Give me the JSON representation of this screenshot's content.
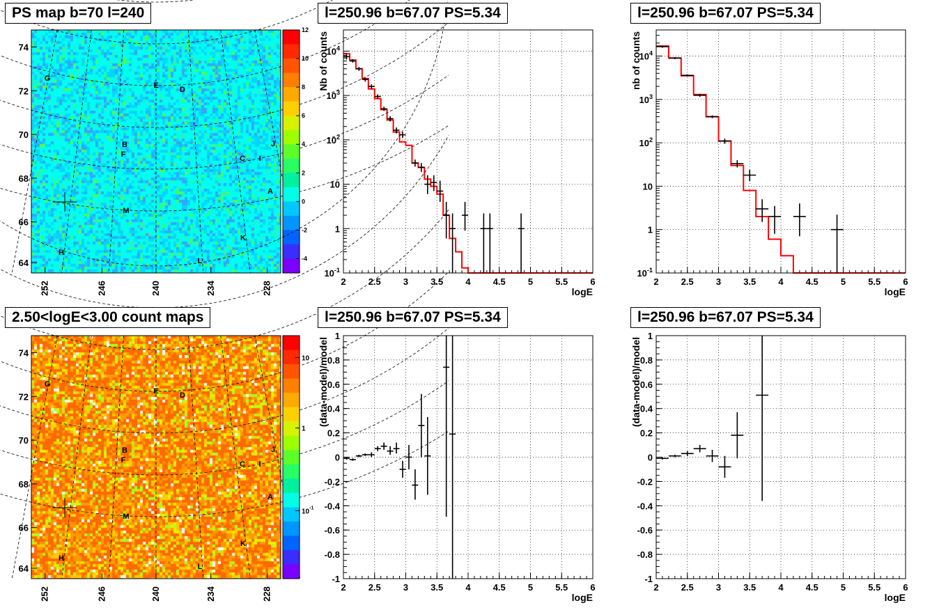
{
  "colors": {
    "model_line": "#ff0000",
    "data_points": "#000000",
    "frame": "#000000",
    "grid": "#000000"
  },
  "panels": {
    "ps_map": {
      "title": "PS map b=70 l=240"
    },
    "count_map": {
      "title": "2.50<logE<3.00 count maps"
    },
    "spec1": {
      "title": "l=250.96 b=67.07 PS=5.34"
    },
    "spec2": {
      "title": "l=250.96 b=67.07 PS=5.34"
    },
    "res1": {
      "title": "l=250.96 b=67.07 PS=5.34"
    },
    "res2": {
      "title": "l=250.96 b=67.07 PS=5.34"
    }
  },
  "chart_data": [
    {
      "id": "ps_map",
      "type": "heatmap",
      "title": "PS map b=70 l=240",
      "x_ticks": [
        "252",
        "246",
        "240",
        "234",
        "228"
      ],
      "y_ticks": [
        "74",
        "72",
        "70",
        "68",
        "66",
        "64"
      ],
      "colorbar": {
        "scale": "linear",
        "ticks": [
          "12",
          "10",
          "8",
          "6",
          "4",
          "2",
          "0",
          "-2",
          "-4"
        ],
        "range": [
          -5,
          12
        ]
      },
      "grid": true,
      "source_labels": [
        "G",
        "E",
        "D",
        "B",
        "F",
        "C",
        "I",
        "J",
        "A",
        "M",
        "K",
        "H",
        "L"
      ]
    },
    {
      "id": "count_map",
      "type": "heatmap",
      "title": "2.50<logE<3.00 count maps",
      "x_ticks": [
        "252",
        "246",
        "240",
        "234",
        "228"
      ],
      "y_ticks": [
        "74",
        "72",
        "70",
        "68",
        "66",
        "64"
      ],
      "colorbar": {
        "scale": "log",
        "ticks": [
          "10",
          "1",
          "10-1"
        ]
      },
      "grid": true,
      "source_labels": [
        "G",
        "E",
        "D",
        "B",
        "F",
        "C",
        "I",
        "J",
        "A",
        "M",
        "K",
        "H",
        "L"
      ]
    },
    {
      "id": "spec1",
      "type": "line",
      "title": "l=250.96 b=67.07 PS=5.34",
      "xlabel": "logE",
      "ylabel": "Nb of counts",
      "xlim": [
        2,
        6
      ],
      "ylim": [
        0.1,
        30000
      ],
      "y_scale": "log",
      "grid": true,
      "x_ticks": [
        "2",
        "2.5",
        "3",
        "3.5",
        "4",
        "4.5",
        "5",
        "5.5",
        "6"
      ],
      "y_ticks": [
        "10-1",
        "1",
        "10",
        "102",
        "103",
        "104"
      ],
      "series": [
        {
          "type": "step",
          "bin_width": 0.1,
          "edges": [
            2,
            2.1,
            2.2,
            2.3,
            2.4,
            2.5,
            2.6,
            2.7,
            2.8,
            2.9,
            3,
            3.1,
            3.2,
            3.3,
            3.4,
            3.5,
            3.6,
            3.7,
            3.8,
            3.9,
            4,
            4.1,
            4.2,
            4.3,
            4.4,
            4.5,
            4.6,
            4.7,
            4.8,
            4.9,
            5,
            5.1,
            5.2,
            5.3,
            5.4,
            5.5,
            5.6,
            5.7,
            5.8,
            5.9,
            6
          ],
          "values": [
            8700,
            6300,
            4000,
            2400,
            1400,
            850,
            480,
            280,
            150,
            90,
            75,
            30,
            24,
            13,
            9,
            6,
            2,
            0.6,
            0.3,
            0.13,
            0.1,
            0.1,
            0.1,
            0.1,
            0.1,
            0.1,
            0.1,
            0.1,
            0.1,
            0.1,
            0.1,
            0.1,
            0.1,
            0.1,
            0.1,
            0.1,
            0.1,
            0.1,
            0.1,
            0.1
          ]
        },
        {
          "type": "errorbar",
          "points": [
            [
              2.05,
              7500,
              6500,
              8500
            ],
            [
              2.15,
              6000,
              5500,
              6600
            ],
            [
              2.25,
              4000,
              3600,
              4400
            ],
            [
              2.35,
              2300,
              2050,
              2550
            ],
            [
              2.45,
              1600,
              1420,
              1780
            ],
            [
              2.55,
              950,
              850,
              1060
            ],
            [
              2.65,
              500,
              450,
              560
            ],
            [
              2.75,
              300,
              260,
              340
            ],
            [
              2.85,
              165,
              140,
              190
            ],
            [
              2.95,
              130,
              110,
              150
            ],
            [
              3.15,
              30,
              25,
              36
            ],
            [
              3.25,
              24,
              19,
              30
            ],
            [
              3.35,
              10,
              6,
              16
            ],
            [
              3.45,
              11,
              7,
              16
            ],
            [
              3.55,
              7,
              4,
              12
            ],
            [
              3.65,
              2,
              0.6,
              4
            ],
            [
              3.75,
              1,
              0.1,
              2.2
            ],
            [
              3.95,
              2,
              0.9,
              4
            ],
            [
              4.25,
              1,
              0.1,
              2.2
            ],
            [
              4.35,
              1,
              0.1,
              2.2
            ],
            [
              4.85,
              1,
              0.1,
              2.2
            ]
          ]
        }
      ]
    },
    {
      "id": "spec2",
      "type": "line",
      "title": "l=250.96 b=67.07 PS=5.34",
      "xlabel": "logE",
      "ylabel": "nb of counts",
      "xlim": [
        2,
        6
      ],
      "ylim": [
        0.1,
        40000
      ],
      "y_scale": "log",
      "grid": true,
      "x_ticks": [
        "2",
        "2.5",
        "3",
        "3.5",
        "4",
        "4.5",
        "5",
        "5.5",
        "6"
      ],
      "y_ticks": [
        "10-1",
        "1",
        "10",
        "102",
        "103",
        "104"
      ],
      "series": [
        {
          "type": "step",
          "bin_width": 0.2,
          "edges": [
            2,
            2.2,
            2.4,
            2.6,
            2.8,
            3,
            3.2,
            3.4,
            3.6,
            3.8,
            4,
            4.2,
            4.4,
            4.6,
            4.8,
            5,
            5.2,
            5.4,
            5.6,
            5.8,
            6
          ],
          "values": [
            17000,
            9000,
            3500,
            1300,
            400,
            110,
            30,
            8,
            2,
            0.6,
            0.25,
            0.1,
            0.1,
            0.1,
            0.1,
            0.1,
            0.1,
            0.1,
            0.1,
            0.1
          ]
        },
        {
          "type": "errorbar",
          "points": [
            [
              2.1,
              16500,
              15500,
              17500
            ],
            [
              2.3,
              9000,
              8500,
              9500
            ],
            [
              2.5,
              3600,
              3400,
              3800
            ],
            [
              2.7,
              1250,
              1150,
              1350
            ],
            [
              2.9,
              400,
              370,
              430
            ],
            [
              3.1,
              110,
              95,
              125
            ],
            [
              3.3,
              33,
              27,
              40
            ],
            [
              3.5,
              18,
              13,
              24
            ],
            [
              3.7,
              3,
              1.5,
              5
            ],
            [
              3.9,
              2,
              0.8,
              3.5
            ],
            [
              4.3,
              2,
              0.7,
              4
            ],
            [
              4.9,
              1,
              0.1,
              2.2
            ]
          ]
        }
      ]
    },
    {
      "id": "res1",
      "type": "scatter",
      "title": "l=250.96 b=67.07 PS=5.34",
      "xlabel": "logE",
      "ylabel": "(data-model)/model",
      "xlim": [
        2,
        6
      ],
      "ylim": [
        -1,
        1
      ],
      "grid": true,
      "x_ticks": [
        "2",
        "2.5",
        "3",
        "3.5",
        "4",
        "4.5",
        "5",
        "5.5",
        "6"
      ],
      "y_ticks": [
        "-1",
        "-0.8",
        "-0.6",
        "-0.4",
        "-0.2",
        "0",
        "0.2",
        "0.4",
        "0.6",
        "0.8",
        "1"
      ],
      "half_width": 0.05,
      "points": [
        [
          2.05,
          -0.01,
          -0.02,
          0
        ],
        [
          2.15,
          -0.02,
          -0.03,
          -0.01
        ],
        [
          2.25,
          0.01,
          0,
          0.02
        ],
        [
          2.35,
          0.02,
          0.01,
          0.03
        ],
        [
          2.45,
          0.02,
          0,
          0.04
        ],
        [
          2.55,
          0.07,
          0.05,
          0.09
        ],
        [
          2.65,
          0.09,
          0.06,
          0.12
        ],
        [
          2.75,
          0.05,
          0.02,
          0.09
        ],
        [
          2.85,
          0.07,
          0.03,
          0.12
        ],
        [
          2.95,
          -0.1,
          -0.17,
          -0.03
        ],
        [
          3.05,
          0,
          -0.1,
          0.1
        ],
        [
          3.15,
          -0.23,
          -0.35,
          -0.1
        ],
        [
          3.25,
          0.26,
          0,
          0.52
        ],
        [
          3.35,
          0.01,
          -0.31,
          0.33
        ],
        [
          3.65,
          0.74,
          -0.49,
          1
        ],
        [
          3.75,
          0.19,
          -1,
          1
        ]
      ]
    },
    {
      "id": "res2",
      "type": "scatter",
      "title": "l=250.96 b=67.07 PS=5.34",
      "xlabel": "logE",
      "ylabel": "(data-model)/model",
      "xlim": [
        2,
        6
      ],
      "ylim": [
        -1,
        1
      ],
      "grid": true,
      "x_ticks": [
        "2",
        "2.5",
        "3",
        "3.5",
        "4",
        "4.5",
        "5",
        "5.5",
        "6"
      ],
      "y_ticks": [
        "-1",
        "-0.8",
        "-0.6",
        "-0.4",
        "-0.2",
        "0",
        "0.2",
        "0.4",
        "0.6",
        "0.8",
        "1"
      ],
      "half_width": 0.1,
      "points": [
        [
          2.1,
          -0.01,
          -0.02,
          0
        ],
        [
          2.3,
          0.01,
          0,
          0.02
        ],
        [
          2.5,
          0.03,
          0.01,
          0.05
        ],
        [
          2.7,
          0.07,
          0.04,
          0.1
        ],
        [
          2.9,
          0.01,
          -0.04,
          0.06
        ],
        [
          3.1,
          -0.08,
          -0.17,
          0.01
        ],
        [
          3.3,
          0.18,
          -0.01,
          0.37
        ],
        [
          3.7,
          0.51,
          -0.36,
          1
        ]
      ]
    }
  ]
}
